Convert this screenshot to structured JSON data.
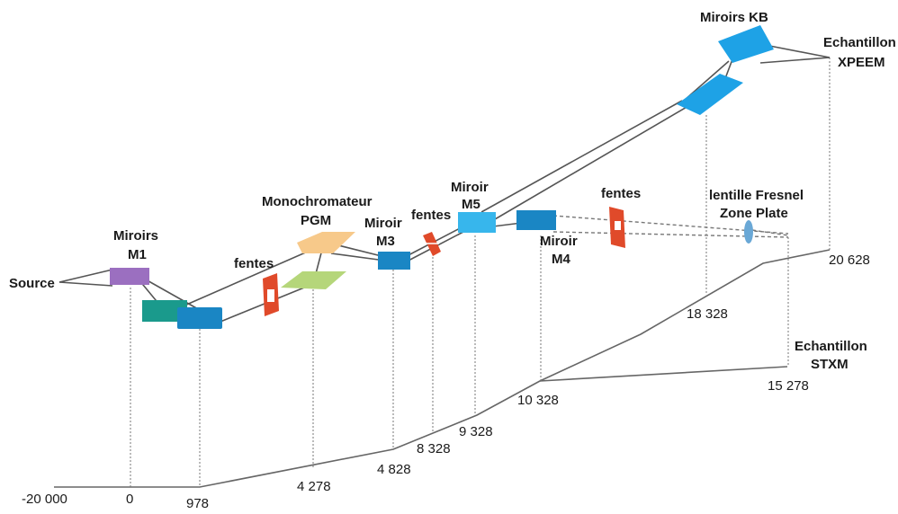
{
  "labels": {
    "source": "Source",
    "m1_line1": "Miroirs",
    "m1_line2": "M1",
    "fentes1": "fentes",
    "mono_line1": "Monochromateur",
    "mono_line2": "PGM",
    "m3_line1": "Miroir",
    "m3_line2": "M3",
    "fentes2": "fentes",
    "m5_line1": "Miroir",
    "m5_line2": "M5",
    "m4_line1": "Miroir",
    "m4_line2": "M4",
    "fentes3": "fentes",
    "kb": "Miroirs KB",
    "xpeem_line1": "Echantillon",
    "xpeem_line2": "XPEEM",
    "fresnel_line1": "lentille Fresnel",
    "fresnel_line2": "Zone Plate",
    "stxm_line1": "Echantillon",
    "stxm_line2": "STXM"
  },
  "distances": {
    "d_source": "-20 000",
    "d_m1": "0",
    "d_978": "978",
    "d_4278": "4 278",
    "d_4828": "4 828",
    "d_8328": "8 328",
    "d_9328": "9 328",
    "d_10328": "10 328",
    "d_15278": "15 278",
    "d_18328": "18 328",
    "d_20628": "20 628"
  },
  "colors": {
    "m1": "#9b6fc0",
    "mirror_teal": "#1a9a8c",
    "mirror_blue": "#1a86c4",
    "grating_orange": "#f7c98a",
    "mirror_green": "#b5d67a",
    "slit_red": "#e04a2a",
    "m5_light_blue": "#37b6ec",
    "kb_blue": "#1ea2e6",
    "zone_plate": "#6aa8d6"
  }
}
